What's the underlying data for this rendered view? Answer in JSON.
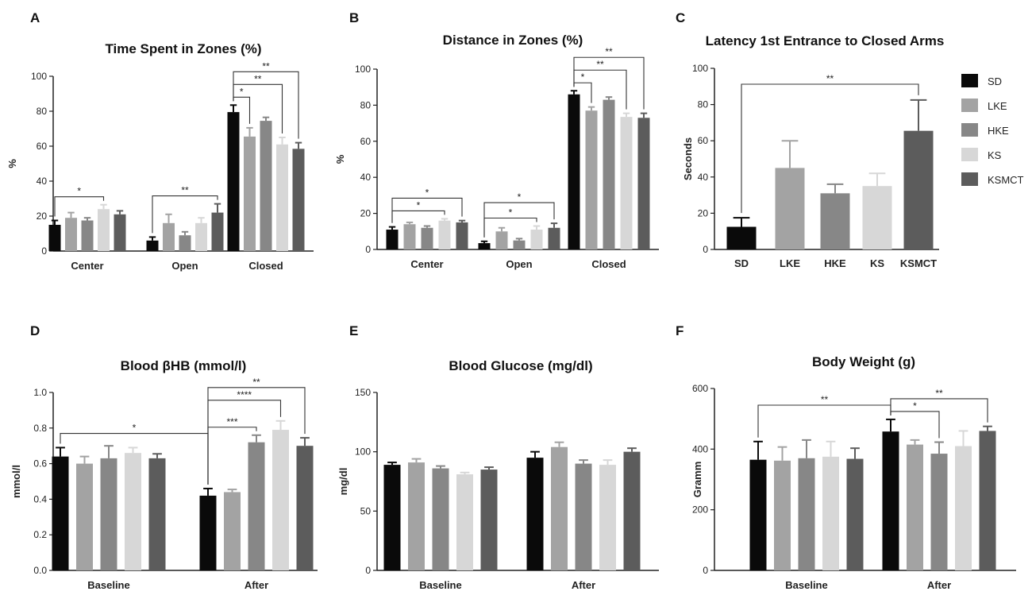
{
  "groups": [
    "SD",
    "LKE",
    "HKE",
    "KS",
    "KSMCT"
  ],
  "colors": [
    "#0a0a0a",
    "#a3a3a3",
    "#878787",
    "#d7d7d7",
    "#5c5c5c"
  ],
  "chart_data": [
    {
      "id": "A",
      "panel_label": "A",
      "type": "bar",
      "title": "Time Spent in Zones (%)",
      "xlabel": "",
      "ylabel": "%",
      "ylim": [
        0,
        100
      ],
      "yticks": [
        "0",
        "20",
        "40",
        "60",
        "80",
        "100"
      ],
      "categories": [
        "Center",
        "Open",
        "Closed"
      ],
      "series": [
        {
          "name": "SD",
          "values": [
            15,
            6,
            79.5
          ],
          "errors": [
            2.5,
            2,
            4
          ]
        },
        {
          "name": "LKE",
          "values": [
            19,
            16,
            65.5
          ],
          "errors": [
            3,
            5,
            5
          ]
        },
        {
          "name": "HKE",
          "values": [
            17.5,
            9,
            74.5
          ],
          "errors": [
            1.5,
            2,
            2
          ]
        },
        {
          "name": "KS",
          "values": [
            24,
            16,
            61
          ],
          "errors": [
            2.5,
            3,
            4
          ]
        },
        {
          "name": "KSMCT",
          "values": [
            21,
            22,
            58.5
          ],
          "errors": [
            2,
            5,
            3.5
          ]
        }
      ],
      "significance": [
        {
          "from": [
            0,
            0
          ],
          "to": [
            0,
            3
          ],
          "label": "*"
        },
        {
          "from": [
            1,
            0
          ],
          "to": [
            1,
            4
          ],
          "label": "**"
        },
        {
          "from": [
            2,
            0
          ],
          "to": [
            2,
            1
          ],
          "label": "*"
        },
        {
          "from": [
            2,
            0
          ],
          "to": [
            2,
            3
          ],
          "label": "**"
        },
        {
          "from": [
            2,
            0
          ],
          "to": [
            2,
            4
          ],
          "label": "**"
        }
      ]
    },
    {
      "id": "B",
      "panel_label": "B",
      "type": "bar",
      "title": "Distance in Zones (%)",
      "xlabel": "",
      "ylabel": "%",
      "ylim": [
        0,
        100
      ],
      "yticks": [
        "0",
        "20",
        "40",
        "60",
        "80",
        "100"
      ],
      "categories": [
        "Center",
        "Open",
        "Closed"
      ],
      "series": [
        {
          "name": "SD",
          "values": [
            11,
            3.5,
            86
          ],
          "errors": [
            1.5,
            1,
            2
          ]
        },
        {
          "name": "LKE",
          "values": [
            14,
            10,
            77
          ],
          "errors": [
            1,
            2,
            2
          ]
        },
        {
          "name": "HKE",
          "values": [
            12,
            5,
            83
          ],
          "errors": [
            1,
            1,
            1.5
          ]
        },
        {
          "name": "KS",
          "values": [
            16,
            11,
            73.5
          ],
          "errors": [
            1,
            2,
            2
          ]
        },
        {
          "name": "KSMCT",
          "values": [
            15,
            12,
            73
          ],
          "errors": [
            1,
            2.5,
            2.5
          ]
        }
      ],
      "significance": [
        {
          "from": [
            0,
            0
          ],
          "to": [
            0,
            3
          ],
          "label": "*"
        },
        {
          "from": [
            0,
            0
          ],
          "to": [
            0,
            4
          ],
          "label": "*"
        },
        {
          "from": [
            1,
            0
          ],
          "to": [
            1,
            3
          ],
          "label": "*"
        },
        {
          "from": [
            1,
            0
          ],
          "to": [
            1,
            4
          ],
          "label": "*"
        },
        {
          "from": [
            2,
            0
          ],
          "to": [
            2,
            1
          ],
          "label": "*"
        },
        {
          "from": [
            2,
            0
          ],
          "to": [
            2,
            3
          ],
          "label": "**"
        },
        {
          "from": [
            2,
            0
          ],
          "to": [
            2,
            4
          ],
          "label": "**"
        }
      ]
    },
    {
      "id": "C",
      "panel_label": "C",
      "type": "bar",
      "title": "Latency 1st Entrance to Closed Arms",
      "xlabel": "",
      "ylabel": "Seconds",
      "ylim": [
        0,
        100
      ],
      "yticks": [
        "0",
        "20",
        "40",
        "60",
        "80",
        "100"
      ],
      "categories": [
        "SD",
        "LKE",
        "HKE",
        "KS",
        "KSMCT"
      ],
      "values": [
        12.5,
        45,
        31,
        35,
        65.5
      ],
      "errors": [
        5,
        15,
        5,
        7,
        17
      ],
      "significance": [
        {
          "from": 0,
          "to": 4,
          "label": "**"
        }
      ],
      "legend": {
        "position": "right",
        "entries": [
          "SD",
          "LKE",
          "HKE",
          "KS",
          "KSMCT"
        ]
      }
    },
    {
      "id": "D",
      "panel_label": "D",
      "type": "bar",
      "title": "Blood βHB (mmol/l)",
      "xlabel": "",
      "ylabel": "mmol/l",
      "ylim": [
        0,
        1.0
      ],
      "yticks": [
        "0.0",
        "0.2",
        "0.4",
        "0.6",
        "0.8",
        "1.0"
      ],
      "categories": [
        "Baseline",
        "After"
      ],
      "series": [
        {
          "name": "SD",
          "values": [
            0.64,
            0.42
          ],
          "errors": [
            0.05,
            0.04
          ]
        },
        {
          "name": "LKE",
          "values": [
            0.6,
            0.44
          ],
          "errors": [
            0.04,
            0.015
          ]
        },
        {
          "name": "HKE",
          "values": [
            0.63,
            0.72
          ],
          "errors": [
            0.07,
            0.04
          ]
        },
        {
          "name": "KS",
          "values": [
            0.66,
            0.79
          ],
          "errors": [
            0.03,
            0.05
          ]
        },
        {
          "name": "KSMCT",
          "values": [
            0.63,
            0.7
          ],
          "errors": [
            0.025,
            0.045
          ]
        }
      ],
      "significance": [
        {
          "from": [
            0,
            0
          ],
          "to": [
            1,
            0
          ],
          "label": "*"
        },
        {
          "from": [
            1,
            0
          ],
          "to": [
            1,
            2
          ],
          "label": "***"
        },
        {
          "from": [
            1,
            0
          ],
          "to": [
            1,
            3
          ],
          "label": "****"
        },
        {
          "from": [
            1,
            0
          ],
          "to": [
            1,
            4
          ],
          "label": "**"
        }
      ]
    },
    {
      "id": "E",
      "panel_label": "E",
      "type": "bar",
      "title": "Blood Glucose (mg/dl)",
      "xlabel": "",
      "ylabel": "mg/dl",
      "ylim": [
        0,
        150
      ],
      "yticks": [
        "0",
        "50",
        "100",
        "150"
      ],
      "categories": [
        "Baseline",
        "After"
      ],
      "series": [
        {
          "name": "SD",
          "values": [
            89,
            95
          ],
          "errors": [
            2,
            5
          ]
        },
        {
          "name": "LKE",
          "values": [
            91,
            104
          ],
          "errors": [
            3,
            4
          ]
        },
        {
          "name": "HKE",
          "values": [
            86,
            90
          ],
          "errors": [
            2,
            3
          ]
        },
        {
          "name": "KS",
          "values": [
            81,
            89
          ],
          "errors": [
            1.5,
            4
          ]
        },
        {
          "name": "KSMCT",
          "values": [
            85,
            100
          ],
          "errors": [
            2,
            3
          ]
        }
      ],
      "significance": []
    },
    {
      "id": "F",
      "panel_label": "F",
      "type": "bar",
      "title": "Body Weight (g)",
      "xlabel": "",
      "ylabel": "Gramm",
      "ylim": [
        0,
        600
      ],
      "yticks": [
        "0",
        "200",
        "400",
        "600"
      ],
      "categories": [
        "Baseline",
        "After"
      ],
      "series": [
        {
          "name": "SD",
          "values": [
            365,
            458
          ],
          "errors": [
            60,
            40
          ]
        },
        {
          "name": "LKE",
          "values": [
            362,
            415
          ],
          "errors": [
            45,
            15
          ]
        },
        {
          "name": "HKE",
          "values": [
            370,
            385
          ],
          "errors": [
            60,
            38
          ]
        },
        {
          "name": "KS",
          "values": [
            375,
            410
          ],
          "errors": [
            50,
            50
          ]
        },
        {
          "name": "KSMCT",
          "values": [
            368,
            460
          ],
          "errors": [
            35,
            15
          ]
        }
      ],
      "significance": [
        {
          "from": [
            0,
            0
          ],
          "to": [
            1,
            0
          ],
          "label": "**"
        },
        {
          "from": [
            1,
            0
          ],
          "to": [
            1,
            2
          ],
          "label": "*"
        },
        {
          "from": [
            1,
            0
          ],
          "to": [
            1,
            4
          ],
          "label": "**"
        }
      ]
    }
  ]
}
